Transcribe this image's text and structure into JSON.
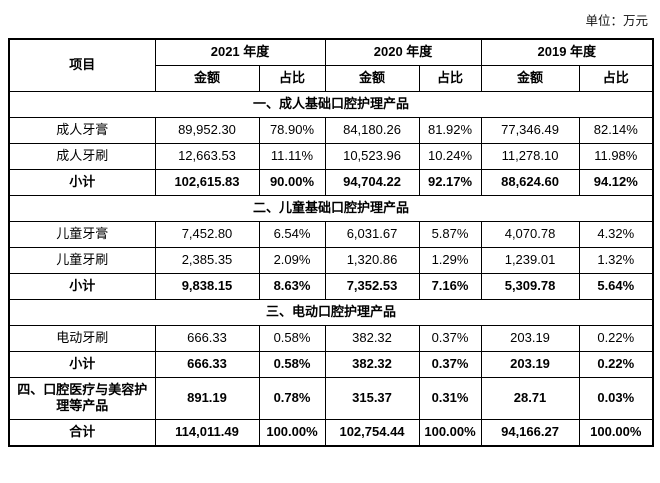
{
  "unit_label": "单位：万元",
  "table": {
    "header": {
      "item": "项目",
      "years": [
        "2021 年度",
        "2020 年度",
        "2019 年度"
      ],
      "sub": [
        "金额",
        "占比"
      ]
    },
    "rows": [
      {
        "type": "section",
        "label": "一、成人基础口腔护理产品"
      },
      {
        "type": "data",
        "label": "成人牙膏",
        "values": [
          "89,952.30",
          "78.90%",
          "84,180.26",
          "81.92%",
          "77,346.49",
          "82.14%"
        ]
      },
      {
        "type": "data",
        "label": "成人牙刷",
        "values": [
          "12,663.53",
          "11.11%",
          "10,523.96",
          "10.24%",
          "11,278.10",
          "11.98%"
        ]
      },
      {
        "type": "subtotal",
        "label": "小计",
        "values": [
          "102,615.83",
          "90.00%",
          "94,704.22",
          "92.17%",
          "88,624.60",
          "94.12%"
        ]
      },
      {
        "type": "section",
        "label": "二、儿童基础口腔护理产品"
      },
      {
        "type": "data",
        "label": "儿童牙膏",
        "values": [
          "7,452.80",
          "6.54%",
          "6,031.67",
          "5.87%",
          "4,070.78",
          "4.32%"
        ]
      },
      {
        "type": "data",
        "label": "儿童牙刷",
        "values": [
          "2,385.35",
          "2.09%",
          "1,320.86",
          "1.29%",
          "1,239.01",
          "1.32%"
        ]
      },
      {
        "type": "subtotal",
        "label": "小计",
        "values": [
          "9,838.15",
          "8.63%",
          "7,352.53",
          "7.16%",
          "5,309.78",
          "5.64%"
        ]
      },
      {
        "type": "section",
        "label": "三、电动口腔护理产品"
      },
      {
        "type": "data",
        "label": "电动牙刷",
        "values": [
          "666.33",
          "0.58%",
          "382.32",
          "0.37%",
          "203.19",
          "0.22%"
        ]
      },
      {
        "type": "subtotal",
        "label": "小计",
        "values": [
          "666.33",
          "0.58%",
          "382.32",
          "0.37%",
          "203.19",
          "0.22%"
        ]
      },
      {
        "type": "data",
        "bold": true,
        "label": "四、口腔医疗与美容护理等产品",
        "values": [
          "891.19",
          "0.78%",
          "315.37",
          "0.31%",
          "28.71",
          "0.03%"
        ]
      },
      {
        "type": "total",
        "label": "合计",
        "values": [
          "114,011.49",
          "100.00%",
          "102,754.44",
          "100.00%",
          "94,166.27",
          "100.00%"
        ]
      }
    ]
  }
}
